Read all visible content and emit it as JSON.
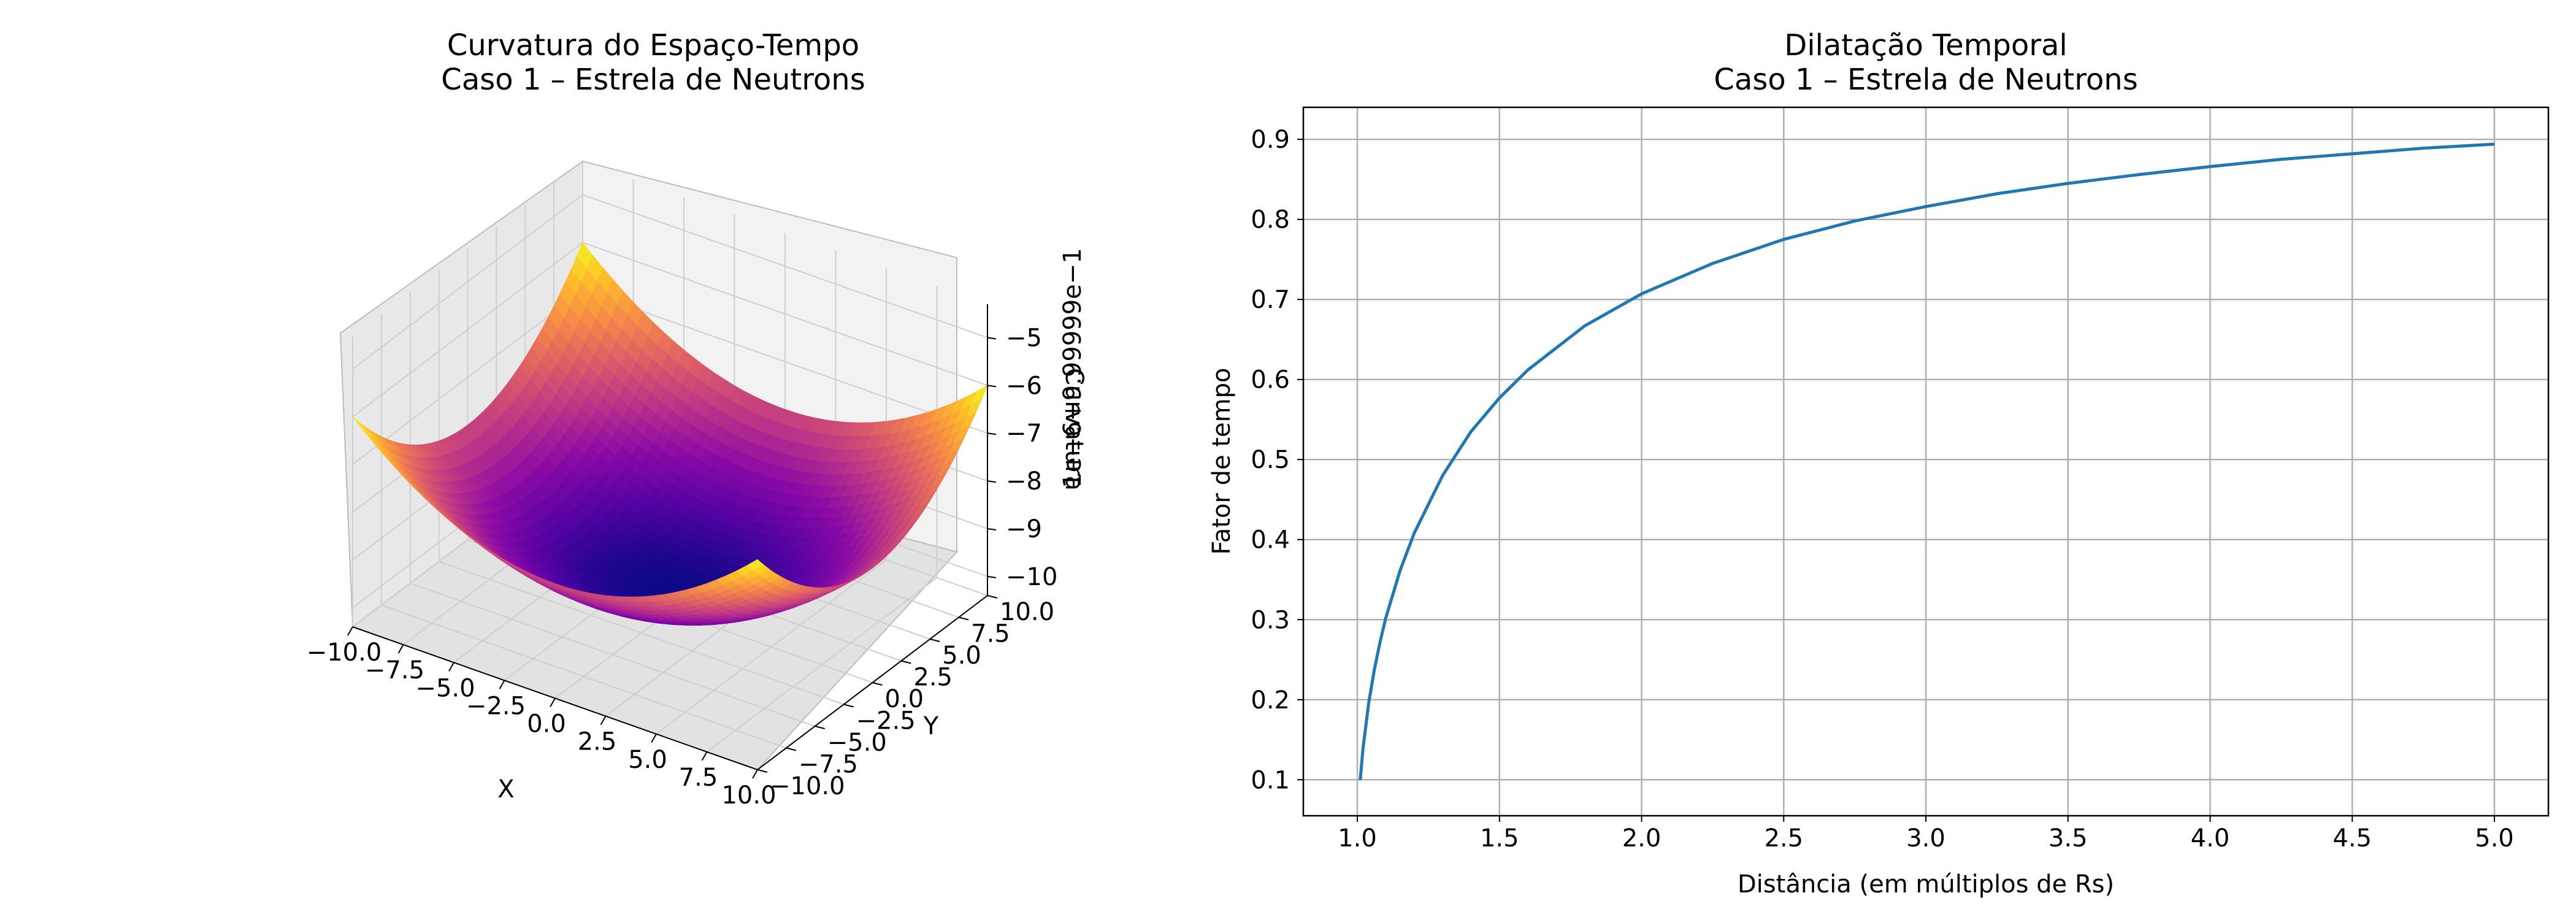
{
  "chart_data": [
    {
      "type": "surface3d",
      "title": "Curvatura do Espaço-Tempo",
      "subtitle": "Caso 1 – Estrela de Neutrons",
      "xlabel": "X",
      "ylabel": "Y",
      "zlabel": "Curvatura",
      "z_offset_text": "1e−6+9.99999e−1",
      "colormap": "plasma",
      "x_ticks": [
        "−10.0",
        "−7.5",
        "−5.0",
        "−2.5",
        "0.0",
        "2.5",
        "5.0",
        "7.5",
        "10.0"
      ],
      "y_ticks": [
        "−10.0",
        "−7.5",
        "−5.0",
        "−2.5",
        "0.0",
        "2.5",
        "5.0",
        "7.5",
        "10.0"
      ],
      "z_ticks": [
        "−5",
        "−6",
        "−7",
        "−8",
        "−9",
        "−10"
      ],
      "xlim": [
        -10,
        10
      ],
      "ylim": [
        -10,
        10
      ],
      "zlim": [
        -10.4,
        -4.3
      ],
      "surface": {
        "description_formula": "z offset = -10 + 0.02*(x^2+y^2)",
        "grid_min": -10,
        "grid_max": 10
      },
      "grid": true
    },
    {
      "type": "line",
      "title": "Dilatação Temporal",
      "subtitle": "Caso 1 – Estrela de Neutrons",
      "xlabel": "Distância (em múltiplos de Rs)",
      "ylabel": "Fator de tempo",
      "xlim": [
        0.81,
        5.19
      ],
      "ylim": [
        0.055,
        0.94
      ],
      "x_ticks": [
        1.0,
        1.5,
        2.0,
        2.5,
        3.0,
        3.5,
        4.0,
        4.5,
        5.0
      ],
      "y_ticks": [
        0.1,
        0.2,
        0.3,
        0.4,
        0.5,
        0.6,
        0.7,
        0.8,
        0.9
      ],
      "grid": true,
      "color": "#1f77b4",
      "series": [
        {
          "x": [
            1.01,
            1.02,
            1.04,
            1.06,
            1.08,
            1.1,
            1.15,
            1.2,
            1.3,
            1.4,
            1.5,
            1.6,
            1.8,
            2.0,
            2.25,
            2.5,
            2.75,
            3.0,
            3.25,
            3.5,
            3.75,
            4.0,
            4.25,
            4.5,
            4.75,
            5.0
          ],
          "y": [
            0.0995,
            0.139,
            0.196,
            0.238,
            0.272,
            0.302,
            0.361,
            0.408,
            0.48,
            0.535,
            0.577,
            0.612,
            0.667,
            0.707,
            0.745,
            0.775,
            0.798,
            0.816,
            0.832,
            0.845,
            0.856,
            0.866,
            0.875,
            0.882,
            0.889,
            0.894
          ]
        }
      ]
    }
  ]
}
